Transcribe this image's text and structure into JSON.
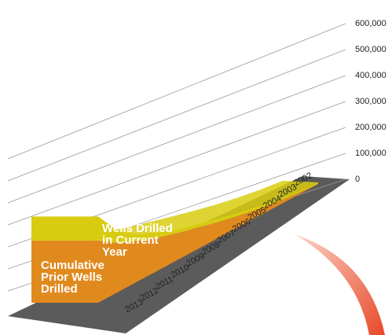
{
  "chart_data": {
    "type": "area3d",
    "categories": [
      "2002",
      "2003",
      "2004",
      "2005",
      "2006",
      "2007",
      "2008",
      "2009",
      "2010",
      "2011",
      "2012",
      "2013"
    ],
    "series": [
      {
        "name": "Cumulative Prior Wells Drilled",
        "color": "#e08a1e",
        "values": [
          2000,
          9000,
          18000,
          28000,
          39000,
          50000,
          61000,
          71000,
          81000,
          92000,
          105000,
          125000
        ]
      },
      {
        "name": "Wells Drilled in Current Year",
        "color": "#d8cc10",
        "values": [
          8000,
          9000,
          10000,
          11000,
          12000,
          12000,
          11000,
          10000,
          12000,
          15000,
          25000,
          48000
        ]
      }
    ],
    "ylim": [
      0,
      600000
    ],
    "yticks": [
      0,
      {
        "value": 100000,
        "label": "100,000"
      },
      {
        "value": 200000,
        "label": "200,000"
      },
      {
        "value": 300000,
        "label": "300,000"
      },
      {
        "value": 400000,
        "label": "400,000"
      },
      {
        "value": 500000,
        "label": "500,000"
      },
      {
        "value": 600000,
        "label": "600,000"
      }
    ],
    "grid": true
  }
}
